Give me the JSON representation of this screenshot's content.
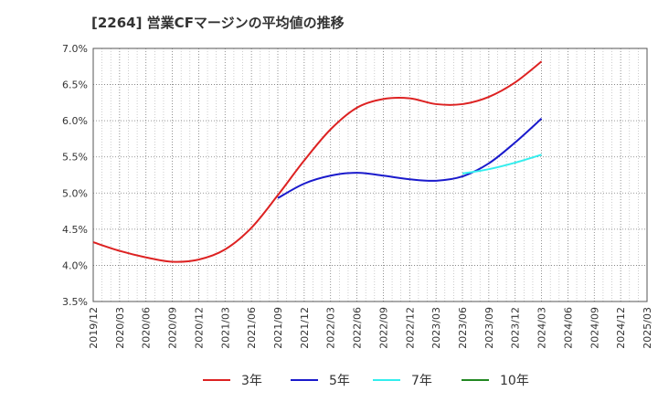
{
  "chart_data": {
    "type": "line",
    "title": "[2264]  営業CFマージンの平均値の推移",
    "xlabel": "",
    "ylabel": "",
    "x_ticks": [
      "2019/12",
      "2020/03",
      "2020/06",
      "2020/09",
      "2020/12",
      "2021/03",
      "2021/06",
      "2021/09",
      "2021/12",
      "2022/03",
      "2022/06",
      "2022/09",
      "2022/12",
      "2023/03",
      "2023/06",
      "2023/09",
      "2023/12",
      "2024/03",
      "2024/06",
      "2024/09",
      "2024/12",
      "2025/03"
    ],
    "y_ticks": [
      "3.5%",
      "4.0%",
      "4.5%",
      "5.0%",
      "5.5%",
      "6.0%",
      "6.5%",
      "7.0%"
    ],
    "ylim": [
      3.5,
      7.0
    ],
    "grid": true,
    "legend_position": "bottom",
    "series": [
      {
        "name": "3年",
        "color": "#dd2222",
        "x": [
          "2019/12",
          "2020/03",
          "2020/06",
          "2020/09",
          "2020/12",
          "2021/03",
          "2021/06",
          "2021/09",
          "2021/12",
          "2022/03",
          "2022/06",
          "2022/09",
          "2022/12",
          "2023/03",
          "2023/06",
          "2023/09",
          "2023/12",
          "2024/03"
        ],
        "values": [
          4.32,
          4.2,
          4.11,
          4.05,
          4.08,
          4.22,
          4.52,
          4.97,
          5.45,
          5.88,
          6.18,
          6.3,
          6.31,
          6.23,
          6.23,
          6.33,
          6.53,
          6.82
        ]
      },
      {
        "name": "5年",
        "color": "#1a1acc",
        "x": [
          "2021/09",
          "2021/12",
          "2022/03",
          "2022/06",
          "2022/09",
          "2022/12",
          "2023/03",
          "2023/06",
          "2023/09",
          "2023/12",
          "2024/03"
        ],
        "values": [
          4.93,
          5.13,
          5.24,
          5.28,
          5.24,
          5.19,
          5.17,
          5.23,
          5.41,
          5.7,
          6.03
        ]
      },
      {
        "name": "7年",
        "color": "#33eeee",
        "x": [
          "2023/06",
          "2023/09",
          "2023/12",
          "2024/03"
        ],
        "values": [
          5.27,
          5.33,
          5.42,
          5.53
        ]
      },
      {
        "name": "10年",
        "color": "#228822",
        "x": [],
        "values": []
      }
    ]
  }
}
